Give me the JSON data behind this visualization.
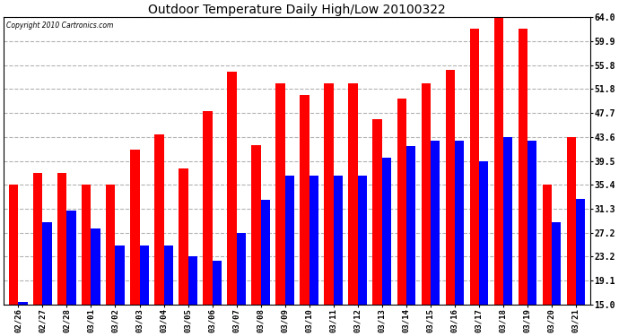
{
  "title": "Outdoor Temperature Daily High/Low 20100322",
  "copyright_text": "Copyright 2010 Cartronics.com",
  "dates": [
    "02/26",
    "02/27",
    "02/28",
    "03/01",
    "03/02",
    "03/03",
    "03/04",
    "03/05",
    "03/06",
    "03/07",
    "03/08",
    "03/09",
    "03/10",
    "03/11",
    "03/12",
    "03/13",
    "03/14",
    "03/15",
    "03/16",
    "03/17",
    "03/18",
    "03/19",
    "03/20",
    "03/21"
  ],
  "highs": [
    35.4,
    37.4,
    37.4,
    35.4,
    35.4,
    41.4,
    44.0,
    38.2,
    48.0,
    54.8,
    42.2,
    52.8,
    50.8,
    52.8,
    52.8,
    46.6,
    50.2,
    52.8,
    55.0,
    62.0,
    64.0,
    62.0,
    35.4,
    43.6
  ],
  "lows": [
    15.5,
    29.0,
    31.0,
    28.0,
    25.0,
    25.0,
    25.0,
    23.2,
    22.5,
    27.2,
    32.8,
    37.0,
    37.0,
    37.0,
    37.0,
    40.0,
    42.0,
    43.0,
    43.0,
    39.5,
    43.5,
    43.0,
    29.0,
    33.0
  ],
  "high_color": "#ff0000",
  "low_color": "#0000ff",
  "bg_color": "#ffffff",
  "grid_color": "#aaaaaa",
  "ymin": 15.0,
  "ymax": 64.0,
  "yticks": [
    15.0,
    19.1,
    23.2,
    27.2,
    31.3,
    35.4,
    39.5,
    43.6,
    47.7,
    51.8,
    55.8,
    59.9,
    64.0
  ]
}
